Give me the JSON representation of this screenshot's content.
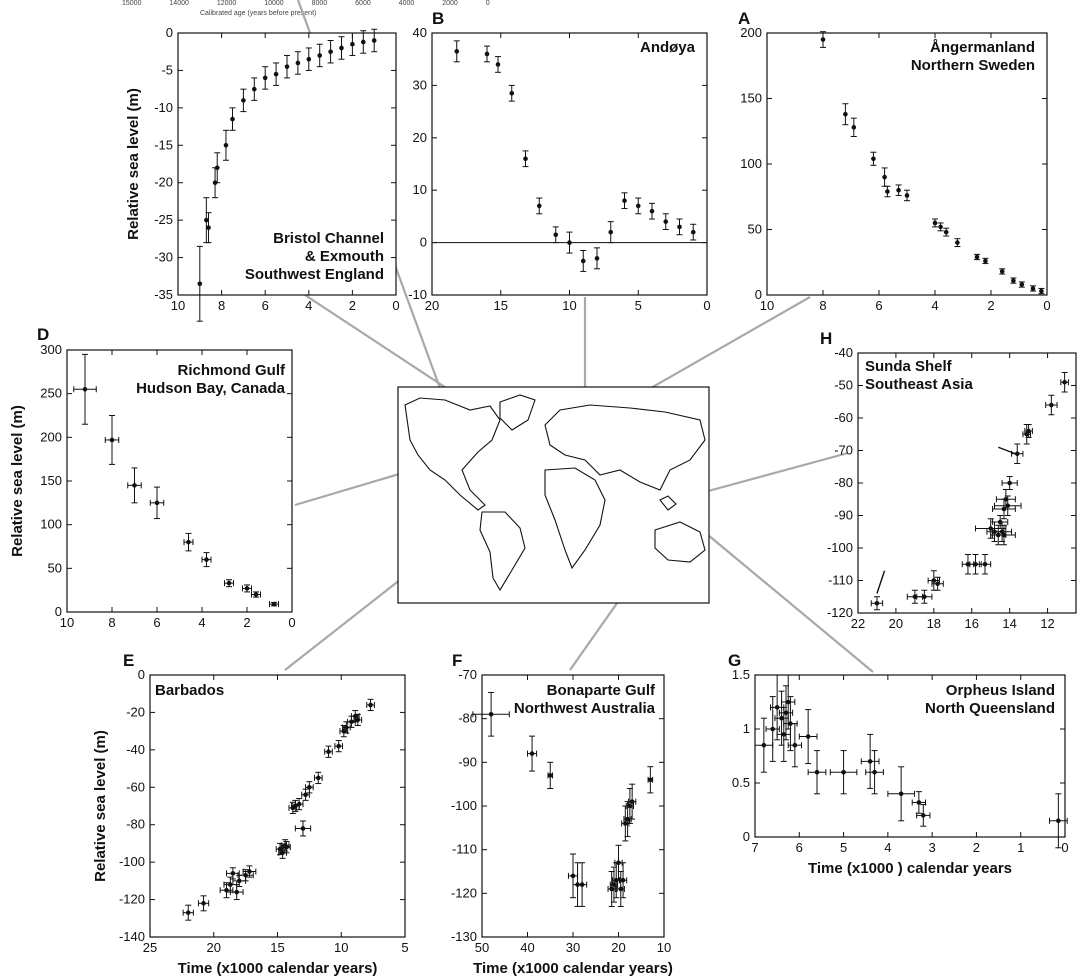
{
  "top_caption": {
    "ticks_text": "15000 14000 12000 10000 8000 6000 4000 2000 0",
    "label": "Calibrated age (years before present)"
  },
  "chart_data": [
    {
      "id": "B",
      "type": "scatter",
      "panel_letter": "B",
      "title_lines": [
        "Andøya"
      ],
      "xlabel": "",
      "ylabel": "",
      "xlim": [
        20,
        0
      ],
      "ylim": [
        -10,
        40
      ],
      "x_reversed": true,
      "xticks": [
        20,
        15,
        10,
        5,
        0
      ],
      "yticks": [
        -10,
        0,
        10,
        20,
        30,
        40
      ],
      "zero_line": true,
      "points": [
        {
          "x": 18.2,
          "y": 36.5,
          "ey": 2
        },
        {
          "x": 16.0,
          "y": 36.0,
          "ey": 1.5
        },
        {
          "x": 15.2,
          "y": 34.0,
          "ey": 1.5
        },
        {
          "x": 14.2,
          "y": 28.5,
          "ey": 1.5
        },
        {
          "x": 13.2,
          "y": 16.0,
          "ey": 1.5
        },
        {
          "x": 12.2,
          "y": 7.0,
          "ey": 1.5
        },
        {
          "x": 11.0,
          "y": 1.5,
          "ey": 1.5
        },
        {
          "x": 10.0,
          "y": 0.0,
          "ey": 2
        },
        {
          "x": 9.0,
          "y": -3.5,
          "ey": 2
        },
        {
          "x": 8.0,
          "y": -3.0,
          "ey": 2
        },
        {
          "x": 7.0,
          "y": 2.0,
          "ey": 2
        },
        {
          "x": 6.0,
          "y": 8.0,
          "ey": 1.5
        },
        {
          "x": 5.0,
          "y": 7.0,
          "ey": 1.5
        },
        {
          "x": 4.0,
          "y": 6.0,
          "ey": 1.5
        },
        {
          "x": 3.0,
          "y": 4.0,
          "ey": 1.5
        },
        {
          "x": 2.0,
          "y": 3.0,
          "ey": 1.5
        },
        {
          "x": 1.0,
          "y": 2.0,
          "ey": 1.5
        }
      ]
    },
    {
      "id": "C",
      "type": "scatter",
      "panel_letter": "",
      "title_lines": [
        "Bristol Channel",
        "& Exmouth",
        "Southwest England"
      ],
      "xlabel": "",
      "ylabel": "Relative sea level (m)",
      "xlim": [
        10,
        0
      ],
      "ylim": [
        -35,
        0
      ],
      "x_reversed": true,
      "xticks": [
        10,
        8,
        6,
        4,
        2,
        0
      ],
      "yticks": [
        -35,
        -30,
        -25,
        -20,
        -15,
        -10,
        -5,
        0
      ],
      "points": [
        {
          "x": 9.0,
          "y": -33.5,
          "ey": 5
        },
        {
          "x": 8.7,
          "y": -25.0,
          "ey": 3
        },
        {
          "x": 8.6,
          "y": -26.0,
          "ey": 2
        },
        {
          "x": 8.3,
          "y": -20.0,
          "ey": 2
        },
        {
          "x": 8.2,
          "y": -18.0,
          "ey": 2
        },
        {
          "x": 7.8,
          "y": -15.0,
          "ey": 2
        },
        {
          "x": 7.5,
          "y": -11.5,
          "ey": 1.5
        },
        {
          "x": 7.0,
          "y": -9.0,
          "ey": 1.5
        },
        {
          "x": 6.5,
          "y": -7.5,
          "ey": 1.5
        },
        {
          "x": 6.0,
          "y": -6.0,
          "ey": 1.5
        },
        {
          "x": 5.5,
          "y": -5.5,
          "ey": 1.5
        },
        {
          "x": 5.0,
          "y": -4.5,
          "ey": 1.5
        },
        {
          "x": 4.5,
          "y": -4.0,
          "ey": 1.5
        },
        {
          "x": 4.0,
          "y": -3.5,
          "ey": 1.5
        },
        {
          "x": 3.5,
          "y": -3.0,
          "ey": 1.5
        },
        {
          "x": 3.0,
          "y": -2.5,
          "ey": 1.5
        },
        {
          "x": 2.5,
          "y": -2.0,
          "ey": 1.5
        },
        {
          "x": 2.0,
          "y": -1.5,
          "ey": 1.5
        },
        {
          "x": 1.5,
          "y": -1.2,
          "ey": 1.5
        },
        {
          "x": 1.0,
          "y": -1.0,
          "ey": 1.5
        }
      ]
    },
    {
      "id": "A",
      "type": "scatter",
      "panel_letter": "A",
      "title_lines": [
        "Ångermanland",
        "Northern Sweden"
      ],
      "xlabel": "",
      "ylabel": "",
      "xlim": [
        10,
        0
      ],
      "ylim": [
        0,
        200
      ],
      "x_reversed": true,
      "xticks": [
        10,
        8,
        6,
        4,
        2,
        0
      ],
      "yticks": [
        0,
        50,
        100,
        150,
        200
      ],
      "points": [
        {
          "x": 8.0,
          "y": 195,
          "ey": 6
        },
        {
          "x": 7.2,
          "y": 138,
          "ey": 8
        },
        {
          "x": 6.9,
          "y": 128,
          "ey": 7
        },
        {
          "x": 6.2,
          "y": 104,
          "ey": 5
        },
        {
          "x": 5.8,
          "y": 90,
          "ey": 7
        },
        {
          "x": 5.7,
          "y": 79,
          "ey": 4
        },
        {
          "x": 5.3,
          "y": 80,
          "ey": 4
        },
        {
          "x": 5.0,
          "y": 76,
          "ey": 4
        },
        {
          "x": 4.0,
          "y": 55,
          "ey": 3
        },
        {
          "x": 3.8,
          "y": 52,
          "ey": 3
        },
        {
          "x": 3.6,
          "y": 48,
          "ey": 3
        },
        {
          "x": 3.2,
          "y": 40,
          "ey": 3
        },
        {
          "x": 2.5,
          "y": 29,
          "ey": 2
        },
        {
          "x": 2.2,
          "y": 26,
          "ey": 2
        },
        {
          "x": 1.6,
          "y": 18,
          "ey": 2
        },
        {
          "x": 1.2,
          "y": 11,
          "ey": 2
        },
        {
          "x": 0.9,
          "y": 8,
          "ey": 2
        },
        {
          "x": 0.5,
          "y": 5,
          "ey": 2
        },
        {
          "x": 0.2,
          "y": 3,
          "ey": 2
        }
      ]
    },
    {
      "id": "D",
      "type": "scatter",
      "panel_letter": "D",
      "title_lines": [
        "Richmond Gulf",
        "Hudson Bay, Canada"
      ],
      "xlabel": "",
      "ylabel": "Relative sea level (m)",
      "xlim": [
        10,
        0
      ],
      "ylim": [
        0,
        300
      ],
      "x_reversed": true,
      "xticks": [
        10,
        8,
        6,
        4,
        2,
        0
      ],
      "yticks": [
        0,
        50,
        100,
        150,
        200,
        250,
        300
      ],
      "points": [
        {
          "x": 9.2,
          "y": 255,
          "ey": 40,
          "ex": 0.5
        },
        {
          "x": 8.0,
          "y": 197,
          "ey": 28,
          "ex": 0.3
        },
        {
          "x": 7.0,
          "y": 145,
          "ey": 20,
          "ex": 0.3
        },
        {
          "x": 6.0,
          "y": 125,
          "ey": 18,
          "ex": 0.3
        },
        {
          "x": 4.6,
          "y": 80,
          "ey": 10,
          "ex": 0.2
        },
        {
          "x": 3.8,
          "y": 60,
          "ey": 8,
          "ex": 0.2
        },
        {
          "x": 2.8,
          "y": 33,
          "ey": 4,
          "ex": 0.2
        },
        {
          "x": 2.0,
          "y": 27,
          "ey": 4,
          "ex": 0.2
        },
        {
          "x": 1.6,
          "y": 20,
          "ey": 3,
          "ex": 0.2
        },
        {
          "x": 0.8,
          "y": 9,
          "ey": 2,
          "ex": 0.2
        }
      ]
    },
    {
      "id": "H",
      "type": "scatter",
      "panel_letter": "H",
      "title_lines": [
        "Sunda Shelf",
        "Southeast Asia"
      ],
      "xlabel": "",
      "ylabel": "",
      "xlim": [
        22,
        10.5
      ],
      "ylim": [
        -120,
        -40
      ],
      "x_reversed": true,
      "xticks": [
        22,
        20,
        18,
        16,
        14,
        12
      ],
      "yticks": [
        -120,
        -110,
        -100,
        -90,
        -80,
        -70,
        -60,
        -50,
        -40
      ],
      "points": [
        {
          "x": 21.0,
          "y": -117,
          "ey": 2,
          "ex": 0.3
        },
        {
          "x": 19.0,
          "y": -115,
          "ey": 2,
          "ex": 0.4
        },
        {
          "x": 18.5,
          "y": -115,
          "ey": 2,
          "ex": 0.4
        },
        {
          "x": 18.0,
          "y": -110,
          "ey": 3,
          "ex": 0.3
        },
        {
          "x": 17.8,
          "y": -111,
          "ey": 2,
          "ex": 0.3
        },
        {
          "x": 16.2,
          "y": -105,
          "ey": 3,
          "ex": 0.3
        },
        {
          "x": 15.8,
          "y": -105,
          "ey": 3,
          "ex": 0.3
        },
        {
          "x": 15.3,
          "y": -105,
          "ey": 3,
          "ex": 0.3
        },
        {
          "x": 15.0,
          "y": -94,
          "ey": 3,
          "ex": 0.8
        },
        {
          "x": 14.8,
          "y": -95,
          "ey": 3,
          "ex": 0.4
        },
        {
          "x": 14.6,
          "y": -96,
          "ey": 3,
          "ex": 0.4
        },
        {
          "x": 14.5,
          "y": -92,
          "ey": 2,
          "ex": 0.4
        },
        {
          "x": 14.4,
          "y": -95,
          "ey": 3,
          "ex": 0.5
        },
        {
          "x": 14.3,
          "y": -88,
          "ey": 3,
          "ex": 0.6
        },
        {
          "x": 14.2,
          "y": -85,
          "ey": 3,
          "ex": 0.5
        },
        {
          "x": 14.1,
          "y": -87,
          "ey": 3,
          "ex": 0.7
        },
        {
          "x": 14.0,
          "y": -80,
          "ey": 2,
          "ex": 0.4
        },
        {
          "x": 14.3,
          "y": -96,
          "ey": 3,
          "ex": 0.6
        },
        {
          "x": 13.6,
          "y": -71,
          "ey": 3,
          "ex": 0.3
        },
        {
          "x": 13.1,
          "y": -65,
          "ey": 3,
          "ex": 0.2
        },
        {
          "x": 13.0,
          "y": -64,
          "ey": 2,
          "ex": 0.2
        },
        {
          "x": 11.8,
          "y": -56,
          "ey": 3,
          "ex": 0.3
        },
        {
          "x": 11.1,
          "y": -49,
          "ey": 3,
          "ex": 0.2
        }
      ],
      "segments": [
        {
          "x1": 21.0,
          "y1": -114,
          "x2": 20.6,
          "y2": -107
        },
        {
          "x1": 14.6,
          "y1": -69,
          "x2": 13.7,
          "y2": -71
        }
      ]
    },
    {
      "id": "E",
      "type": "scatter",
      "panel_letter": "E",
      "title_lines": [
        "Barbados"
      ],
      "title_align": "left",
      "xlabel": "Time (x1000 calendar years)",
      "ylabel": "Relative sea level (m)",
      "xlim": [
        25,
        5
      ],
      "ylim": [
        -140,
        0
      ],
      "x_reversed": true,
      "xticks": [
        25,
        20,
        15,
        10,
        5
      ],
      "yticks": [
        -140,
        -120,
        -100,
        -80,
        -60,
        -40,
        -20,
        0
      ],
      "points": [
        {
          "x": 22.0,
          "y": -127,
          "ey": 4,
          "ex": 0.4
        },
        {
          "x": 20.8,
          "y": -122,
          "ey": 4,
          "ex": 0.4
        },
        {
          "x": 19.0,
          "y": -115,
          "ey": 4,
          "ex": 0.5
        },
        {
          "x": 18.7,
          "y": -112,
          "ey": 4,
          "ex": 0.5
        },
        {
          "x": 18.5,
          "y": -106,
          "ey": 3,
          "ex": 0.5
        },
        {
          "x": 18.2,
          "y": -116,
          "ey": 4,
          "ex": 0.5
        },
        {
          "x": 18.0,
          "y": -110,
          "ey": 3,
          "ex": 0.5
        },
        {
          "x": 17.5,
          "y": -107,
          "ey": 3,
          "ex": 0.6
        },
        {
          "x": 17.2,
          "y": -105,
          "ey": 3,
          "ex": 0.5
        },
        {
          "x": 14.8,
          "y": -93,
          "ey": 3,
          "ex": 0.3
        },
        {
          "x": 14.6,
          "y": -95,
          "ey": 3,
          "ex": 0.3
        },
        {
          "x": 14.4,
          "y": -91,
          "ey": 3,
          "ex": 0.3
        },
        {
          "x": 14.3,
          "y": -92,
          "ey": 3,
          "ex": 0.3
        },
        {
          "x": 13.8,
          "y": -71,
          "ey": 3,
          "ex": 0.3
        },
        {
          "x": 13.6,
          "y": -70,
          "ey": 3,
          "ex": 0.3
        },
        {
          "x": 13.3,
          "y": -69,
          "ey": 3,
          "ex": 0.3
        },
        {
          "x": 13.0,
          "y": -82,
          "ey": 4,
          "ex": 0.6
        },
        {
          "x": 12.8,
          "y": -64,
          "ey": 3,
          "ex": 0.3
        },
        {
          "x": 12.5,
          "y": -60,
          "ey": 3,
          "ex": 0.3
        },
        {
          "x": 11.8,
          "y": -55,
          "ey": 3,
          "ex": 0.3
        },
        {
          "x": 11.0,
          "y": -41,
          "ey": 3,
          "ex": 0.3
        },
        {
          "x": 10.2,
          "y": -38,
          "ey": 3,
          "ex": 0.3
        },
        {
          "x": 9.8,
          "y": -30,
          "ey": 3,
          "ex": 0.3
        },
        {
          "x": 9.6,
          "y": -28,
          "ey": 3,
          "ex": 0.3
        },
        {
          "x": 9.2,
          "y": -25,
          "ey": 3,
          "ex": 0.3
        },
        {
          "x": 8.9,
          "y": -22,
          "ey": 3,
          "ex": 0.3
        },
        {
          "x": 8.7,
          "y": -24,
          "ey": 3,
          "ex": 0.3
        },
        {
          "x": 7.7,
          "y": -16,
          "ey": 3,
          "ex": 0.3
        }
      ]
    },
    {
      "id": "F",
      "type": "scatter",
      "panel_letter": "F",
      "title_lines": [
        "Bonaparte Gulf",
        "Northwest Australia"
      ],
      "xlabel": "Time (x1000 calendar years)",
      "ylabel": "",
      "xlim": [
        50,
        10
      ],
      "ylim": [
        -130,
        -70
      ],
      "x_reversed": true,
      "xticks": [
        50,
        40,
        30,
        20,
        10
      ],
      "yticks": [
        -130,
        -120,
        -110,
        -100,
        -90,
        -80,
        -70
      ],
      "points": [
        {
          "x": 48.0,
          "y": -79,
          "ey": 5,
          "ex": 4
        },
        {
          "x": 39.0,
          "y": -88,
          "ey": 4,
          "ex": 1
        },
        {
          "x": 35.0,
          "y": -93,
          "ey": 3,
          "ex": 0.5
        },
        {
          "x": 30.0,
          "y": -116,
          "ey": 5,
          "ex": 1
        },
        {
          "x": 29.0,
          "y": -118,
          "ey": 5,
          "ex": 1
        },
        {
          "x": 28.0,
          "y": -118,
          "ey": 5,
          "ex": 1
        },
        {
          "x": 21.5,
          "y": -119,
          "ey": 4,
          "ex": 0.8
        },
        {
          "x": 21.0,
          "y": -118,
          "ey": 4,
          "ex": 0.8
        },
        {
          "x": 20.5,
          "y": -117,
          "ey": 4,
          "ex": 0.8
        },
        {
          "x": 20.0,
          "y": -113,
          "ey": 4,
          "ex": 0.8
        },
        {
          "x": 19.5,
          "y": -119,
          "ey": 4,
          "ex": 0.8
        },
        {
          "x": 19.0,
          "y": -117,
          "ey": 4,
          "ex": 0.8
        },
        {
          "x": 18.5,
          "y": -104,
          "ey": 4,
          "ex": 0.8
        },
        {
          "x": 18.0,
          "y": -103,
          "ey": 4,
          "ex": 0.8
        },
        {
          "x": 17.5,
          "y": -100,
          "ey": 4,
          "ex": 0.8
        },
        {
          "x": 17.0,
          "y": -99,
          "ey": 4,
          "ex": 0.8
        },
        {
          "x": 13.0,
          "y": -94,
          "ey": 3,
          "ex": 0.5
        }
      ]
    },
    {
      "id": "G",
      "type": "scatter",
      "panel_letter": "G",
      "title_lines": [
        "Orpheus Island",
        "North Queensland"
      ],
      "xlabel": "Time (x1000 ) calendar years",
      "ylabel": "",
      "xlim": [
        7,
        0
      ],
      "ylim": [
        0,
        1.5
      ],
      "x_reversed": true,
      "xticks": [
        7,
        6,
        5,
        4,
        3,
        2,
        1,
        0
      ],
      "yticks": [
        0,
        0.5,
        1,
        1.5
      ],
      "points": [
        {
          "x": 6.8,
          "y": 0.85,
          "ey": 0.25,
          "ex": 0.2
        },
        {
          "x": 6.6,
          "y": 1.0,
          "ey": 0.3,
          "ex": 0.15
        },
        {
          "x": 6.5,
          "y": 1.2,
          "ey": 0.3,
          "ex": 0.15
        },
        {
          "x": 6.4,
          "y": 1.1,
          "ey": 0.25,
          "ex": 0.15
        },
        {
          "x": 6.35,
          "y": 0.95,
          "ey": 0.25,
          "ex": 0.15
        },
        {
          "x": 6.3,
          "y": 1.15,
          "ey": 0.25,
          "ex": 0.15
        },
        {
          "x": 6.25,
          "y": 1.25,
          "ey": 0.25,
          "ex": 0.15
        },
        {
          "x": 6.2,
          "y": 1.05,
          "ey": 0.25,
          "ex": 0.15
        },
        {
          "x": 6.1,
          "y": 0.85,
          "ey": 0.2,
          "ex": 0.15
        },
        {
          "x": 5.8,
          "y": 0.93,
          "ey": 0.25,
          "ex": 0.2
        },
        {
          "x": 5.6,
          "y": 0.6,
          "ey": 0.2,
          "ex": 0.2
        },
        {
          "x": 5.0,
          "y": 0.6,
          "ey": 0.2,
          "ex": 0.3
        },
        {
          "x": 4.4,
          "y": 0.7,
          "ey": 0.25,
          "ex": 0.2
        },
        {
          "x": 4.3,
          "y": 0.6,
          "ey": 0.2,
          "ex": 0.2
        },
        {
          "x": 3.7,
          "y": 0.4,
          "ey": 0.25,
          "ex": 0.3
        },
        {
          "x": 3.3,
          "y": 0.32,
          "ey": 0.1,
          "ex": 0.15
        },
        {
          "x": 3.2,
          "y": 0.2,
          "ey": 0.1,
          "ex": 0.15
        },
        {
          "x": 0.15,
          "y": 0.15,
          "ey": 0.25,
          "ex": 0.2
        }
      ]
    }
  ]
}
